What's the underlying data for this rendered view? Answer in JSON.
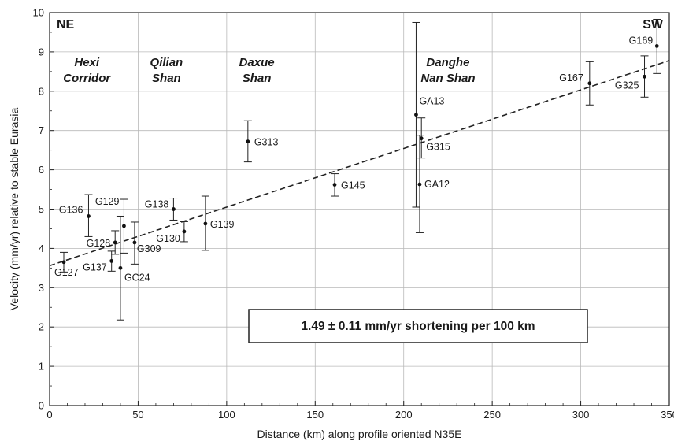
{
  "chart_data": {
    "type": "scatter",
    "xlabel": "Distance (km) along profile oriented N35E",
    "ylabel": "Velocity (mm/yr) relative to stable Eurasia",
    "xlim": [
      0,
      350
    ],
    "ylim": [
      0,
      10
    ],
    "xticks": [
      "0",
      "50",
      "100",
      "150",
      "200",
      "250",
      "300",
      "350"
    ],
    "yticks": [
      "0",
      "1",
      "2",
      "3",
      "4",
      "5",
      "6",
      "7",
      "8",
      "9",
      "10"
    ],
    "grid": true,
    "corner_labels": {
      "left": "NE",
      "right": "SW"
    },
    "regions": [
      {
        "line1": "Hexi",
        "line2": "Corridor",
        "x": 21
      },
      {
        "line1": "Qilian",
        "line2": "Shan",
        "x": 66
      },
      {
        "line1": "Daxue",
        "line2": "Shan",
        "x": 117
      },
      {
        "line1": "Danghe",
        "line2": "Nan Shan",
        "x": 225
      }
    ],
    "annotation": "1.49 ± 0.11 mm/yr shortening per 100 km",
    "trend": {
      "style": "dashed",
      "x": [
        0,
        350
      ],
      "y": [
        3.56,
        8.78
      ]
    },
    "stations": [
      {
        "name": "G127",
        "x": 8,
        "y": 3.65,
        "err_low": 3.4,
        "err_high": 3.9
      },
      {
        "name": "G136",
        "x": 22,
        "y": 4.82,
        "err_low": 4.3,
        "err_high": 5.37
      },
      {
        "name": "G137",
        "x": 35,
        "y": 3.68,
        "err_low": 3.42,
        "err_high": 3.93
      },
      {
        "name": "G128",
        "x": 37,
        "y": 4.15,
        "err_low": 3.85,
        "err_high": 4.45
      },
      {
        "name": "GC24",
        "x": 40,
        "y": 3.5,
        "err_low": 2.18,
        "err_high": 4.82
      },
      {
        "name": "G129",
        "x": 42,
        "y": 4.57,
        "err_low": 3.88,
        "err_high": 5.25
      },
      {
        "name": "G309",
        "x": 48,
        "y": 4.15,
        "err_low": 3.6,
        "err_high": 4.67
      },
      {
        "name": "G138",
        "x": 70,
        "y": 5.0,
        "err_low": 4.72,
        "err_high": 5.28
      },
      {
        "name": "G130",
        "x": 76,
        "y": 4.43,
        "err_low": 4.17,
        "err_high": 4.68
      },
      {
        "name": "G139",
        "x": 88,
        "y": 4.63,
        "err_low": 3.95,
        "err_high": 5.33
      },
      {
        "name": "G313",
        "x": 112,
        "y": 6.72,
        "err_low": 6.2,
        "err_high": 7.25
      },
      {
        "name": "G145",
        "x": 161,
        "y": 5.62,
        "err_low": 5.33,
        "err_high": 5.9
      },
      {
        "name": "GA13",
        "x": 207,
        "y": 7.4,
        "err_low": 5.05,
        "err_high": 9.75
      },
      {
        "name": "G315",
        "x": 210,
        "y": 6.8,
        "err_low": 6.3,
        "err_high": 7.32
      },
      {
        "name": "GA12",
        "x": 209,
        "y": 5.63,
        "err_low": 4.4,
        "err_high": 6.88
      },
      {
        "name": "G167",
        "x": 305,
        "y": 8.2,
        "err_low": 7.65,
        "err_high": 8.75
      },
      {
        "name": "G325",
        "x": 336,
        "y": 8.37,
        "err_low": 7.85,
        "err_high": 8.9
      },
      {
        "name": "G169",
        "x": 343,
        "y": 9.15,
        "err_low": 8.45,
        "err_high": 9.83
      }
    ]
  }
}
